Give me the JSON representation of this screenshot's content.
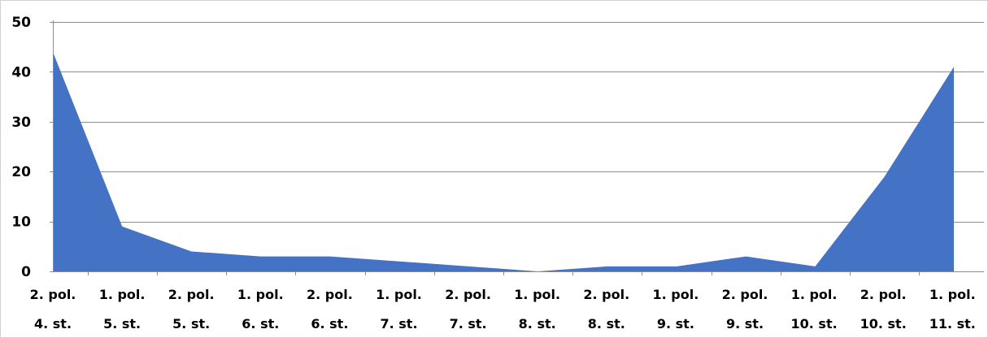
{
  "chart_data": {
    "type": "area",
    "categories": [
      [
        "2. pol.",
        "4. st."
      ],
      [
        "1. pol.",
        "5. st."
      ],
      [
        "2. pol.",
        "5. st."
      ],
      [
        "1. pol.",
        "6. st."
      ],
      [
        "2. pol.",
        "6. st."
      ],
      [
        "1. pol.",
        "7. st."
      ],
      [
        "2. pol.",
        "7. st."
      ],
      [
        "1. pol.",
        "8. st."
      ],
      [
        "2. pol.",
        "8. st."
      ],
      [
        "1. pol.",
        "9. st."
      ],
      [
        "2. pol.",
        "9. st."
      ],
      [
        "1. pol.",
        "10. st."
      ],
      [
        "2. pol.",
        "10. st."
      ],
      [
        "1. pol.",
        "11. st."
      ]
    ],
    "values": [
      44,
      9,
      4,
      3,
      3,
      2,
      1,
      0,
      1,
      1,
      3,
      1,
      19,
      41
    ],
    "ylim": [
      0,
      50
    ],
    "yticks": [
      0,
      10,
      20,
      30,
      40,
      50
    ],
    "grid": true,
    "title": "",
    "xlabel": "",
    "ylabel": "",
    "color": "#4472C4"
  }
}
